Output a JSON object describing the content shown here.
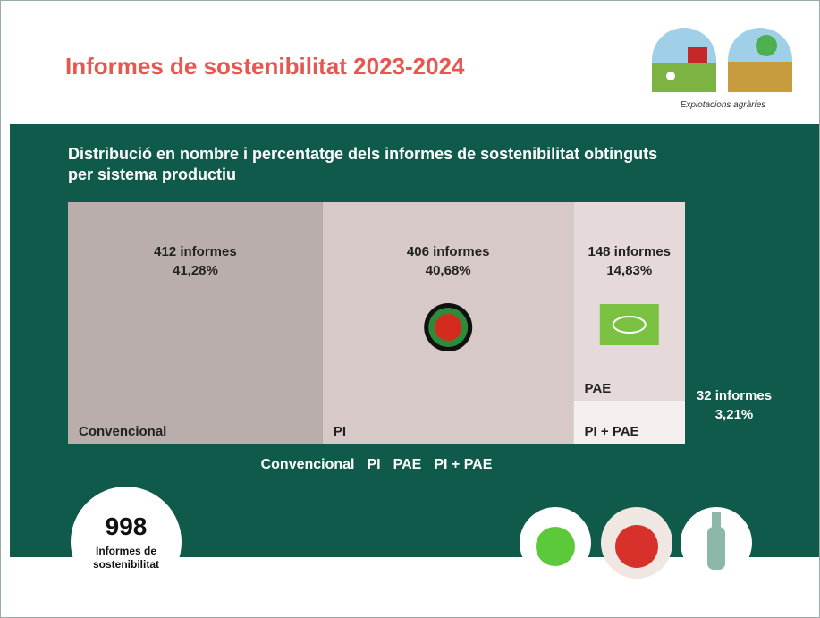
{
  "header": {
    "title": "Informes de sostenibilitat 2023-2024",
    "logo_caption": "Explotacions agràries"
  },
  "chart_data": {
    "type": "treemap",
    "title": "Distribució en nombre i percentatge dels informes de sostenibilitat obtinguts per sistema productiu",
    "series": [
      {
        "name": "Convencional",
        "color": "#b9aeab",
        "values": [
          412
        ],
        "value_labels": [
          "412 informes"
        ],
        "percentages": [
          41.28
        ],
        "percentage_labels": [
          "41,28%"
        ]
      },
      {
        "name": "PI",
        "color": "#d6c9c7",
        "values": [
          406
        ],
        "value_labels": [
          "406 informes"
        ],
        "percentages": [
          40.68
        ],
        "percentage_labels": [
          "40,68%"
        ]
      },
      {
        "name": "PAE",
        "color": "#e6d9d9",
        "values": [
          148
        ],
        "value_labels": [
          "148 informes"
        ],
        "percentages": [
          14.83
        ],
        "percentage_labels": [
          "14,83%"
        ]
      },
      {
        "name": "PI + PAE",
        "color": "#f4efee",
        "values": [
          32
        ],
        "value_labels": [
          "32 informes"
        ],
        "percentages": [
          3.21
        ],
        "percentage_labels": [
          "3,21%"
        ]
      }
    ],
    "legend": "bottom"
  },
  "total": {
    "value": 998,
    "label": "Informes de sostenibilitat"
  }
}
